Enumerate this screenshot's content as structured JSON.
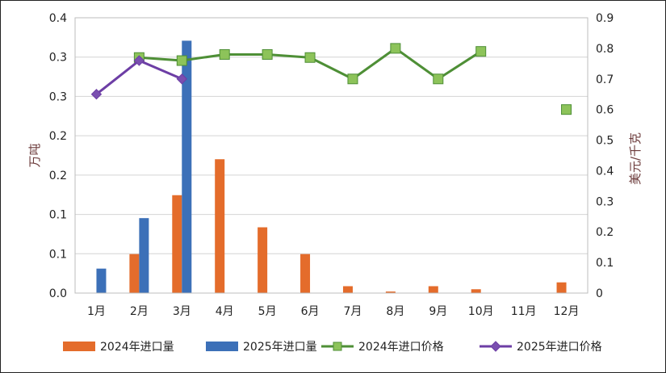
{
  "chart_data": {
    "type": "bar+line",
    "categories": [
      "1月",
      "2月",
      "3月",
      "4月",
      "5月",
      "6月",
      "7月",
      "8月",
      "9月",
      "10月",
      "11月",
      "12月"
    ],
    "y_left": {
      "label": "万吨",
      "ticks": [
        "0.0",
        "0.1",
        "0.1",
        "0.2",
        "0.2",
        "0.3",
        "0.3",
        "0.4"
      ],
      "lim": [
        0,
        0.36
      ]
    },
    "y_right": {
      "label": "美元/千克",
      "ticks": [
        "0",
        "0.1",
        "0.2",
        "0.3",
        "0.4",
        "0.5",
        "0.6",
        "0.7",
        "0.8",
        "0.9"
      ],
      "lim": [
        0,
        0.9
      ]
    },
    "bar_series": [
      {
        "name": "2024年进口量",
        "color": "#E46C2B",
        "values": [
          null,
          0.051,
          0.128,
          0.175,
          0.086,
          0.051,
          0.009,
          0.002,
          0.009,
          0.005,
          null,
          0.014
        ]
      },
      {
        "name": "2025年进口量",
        "color": "#3C70B8",
        "values": [
          0.032,
          0.098,
          0.33,
          null,
          null,
          null,
          null,
          null,
          null,
          null,
          null,
          null
        ]
      }
    ],
    "line_series": [
      {
        "name": "2024年进口价格",
        "color": "#4E8F36",
        "marker": "square",
        "marker_color": "#8DC35A",
        "values": [
          null,
          0.77,
          0.76,
          0.78,
          0.78,
          0.77,
          0.7,
          0.8,
          0.7,
          0.79,
          null,
          0.6
        ]
      },
      {
        "name": "2025年进口价格",
        "color": "#6D3EA5",
        "marker": "diamond",
        "marker_color": "#7A4FB0",
        "values": [
          0.65,
          0.76,
          0.7,
          null,
          null,
          null,
          null,
          null,
          null,
          null,
          null,
          null
        ]
      }
    ],
    "grid": true,
    "legend_position": "bottom"
  }
}
